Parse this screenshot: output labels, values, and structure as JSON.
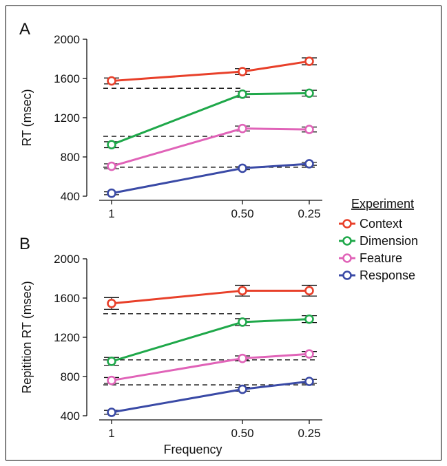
{
  "chart_data": [
    {
      "type": "line",
      "panel_label": "A",
      "ylabel": "RT (msec)",
      "xlabel": "",
      "categories": [
        "1",
        "0.50",
        "0.25"
      ],
      "ylim": [
        400,
        2000
      ],
      "yticks": [
        400,
        800,
        1200,
        1600,
        2000
      ],
      "series": [
        {
          "name": "Context",
          "color": "#e8402a",
          "values": [
            1575,
            1670,
            1775
          ],
          "errors": [
            30,
            30,
            35
          ]
        },
        {
          "name": "Dimension",
          "color": "#1fa84a",
          "values": [
            925,
            1440,
            1450
          ],
          "errors": [
            30,
            30,
            30
          ]
        },
        {
          "name": "Feature",
          "color": "#e063b8",
          "values": [
            705,
            1090,
            1080
          ],
          "errors": [
            25,
            25,
            25
          ]
        },
        {
          "name": "Response",
          "color": "#3a4aa6",
          "values": [
            430,
            685,
            730
          ],
          "errors": [
            15,
            15,
            15
          ]
        }
      ],
      "reference_lines": [
        {
          "y": 1500,
          "x_range": [
            "1",
            "0.50"
          ]
        },
        {
          "y": 1010,
          "x_range": [
            "1",
            "0.50"
          ]
        },
        {
          "y": 695,
          "x_range": [
            "1",
            "0.25"
          ]
        }
      ]
    },
    {
      "type": "line",
      "panel_label": "B",
      "ylabel": "Repitition RT (msec)",
      "xlabel": "Frequency",
      "categories": [
        "1",
        "0.50",
        "0.25"
      ],
      "ylim": [
        400,
        2000
      ],
      "yticks": [
        400,
        800,
        1200,
        1600,
        2000
      ],
      "series": [
        {
          "name": "Context",
          "color": "#e8402a",
          "values": [
            1545,
            1675,
            1675
          ],
          "errors": [
            60,
            55,
            55
          ]
        },
        {
          "name": "Dimension",
          "color": "#1fa84a",
          "values": [
            955,
            1355,
            1385
          ],
          "errors": [
            40,
            35,
            35
          ]
        },
        {
          "name": "Feature",
          "color": "#e063b8",
          "values": [
            760,
            985,
            1030
          ],
          "errors": [
            30,
            25,
            25
          ]
        },
        {
          "name": "Response",
          "color": "#3a4aa6",
          "values": [
            435,
            670,
            750
          ],
          "errors": [
            20,
            20,
            20
          ]
        }
      ],
      "reference_lines": [
        {
          "y": 1440,
          "x_range": [
            "1",
            "0.50"
          ]
        },
        {
          "y": 970,
          "x_range": [
            "1",
            "0.25"
          ]
        },
        {
          "y": 715,
          "x_range": [
            "1",
            "0.25"
          ]
        }
      ]
    }
  ],
  "legend": {
    "title": "Experiment",
    "items": [
      "Context",
      "Dimension",
      "Feature",
      "Response"
    ],
    "colors": [
      "#e8402a",
      "#1fa84a",
      "#e063b8",
      "#3a4aa6"
    ],
    "placement": "right"
  }
}
